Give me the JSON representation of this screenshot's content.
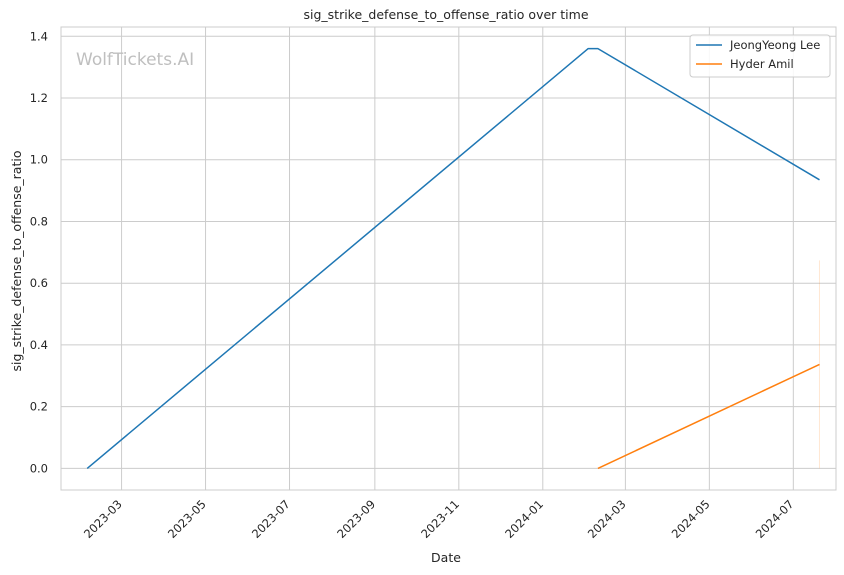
{
  "chart_data": {
    "type": "line",
    "title": "sig_strike_defense_to_offense_ratio over time",
    "xlabel": "Date",
    "ylabel": "sig_strike_defense_to_offense_ratio",
    "watermark": "WolfTickets.AI",
    "xlim": [
      "2023-01-16",
      "2024-08-01"
    ],
    "ylim": [
      -0.07,
      1.43
    ],
    "x_ticks": [
      "2023-03-01",
      "2023-05-01",
      "2023-07-01",
      "2023-09-01",
      "2023-11-01",
      "2024-01-01",
      "2024-03-01",
      "2024-05-01",
      "2024-07-01"
    ],
    "x_tick_labels": [
      "2023-03",
      "2023-05",
      "2023-07",
      "2023-09",
      "2023-11",
      "2024-01",
      "2024-03",
      "2024-05",
      "2024-07"
    ],
    "y_ticks": [
      0.0,
      0.2,
      0.4,
      0.6,
      0.8,
      1.0,
      1.2,
      1.4
    ],
    "y_tick_labels": [
      "0.0",
      "0.2",
      "0.4",
      "0.6",
      "0.8",
      "1.0",
      "1.2",
      "1.4"
    ],
    "grid": true,
    "legend_position": "top-right",
    "series": [
      {
        "name": "JeongYeong Lee",
        "color": "#1f77b4",
        "points": [
          {
            "x": "2023-02-04",
            "y": 0.0
          },
          {
            "x": "2024-02-03",
            "y": 1.36
          },
          {
            "x": "2024-02-10",
            "y": 1.36
          },
          {
            "x": "2024-07-20",
            "y": 0.935
          }
        ]
      },
      {
        "name": "Hyder Amil",
        "color": "#ff7f0e",
        "points": [
          {
            "x": "2024-02-10",
            "y": 0.0
          },
          {
            "x": "2024-07-20",
            "y": 0.337
          }
        ],
        "faint_segment": {
          "x": "2024-07-20",
          "y0": 0.0,
          "y1": 0.674
        }
      }
    ]
  }
}
